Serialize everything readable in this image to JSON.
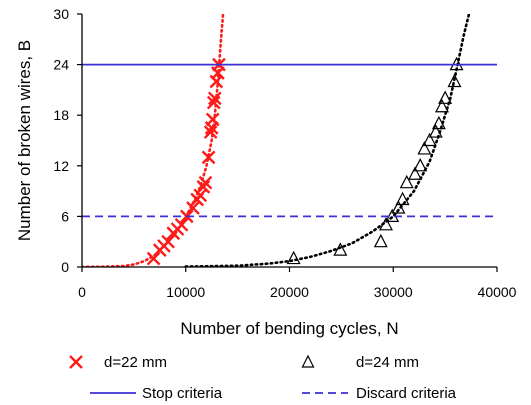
{
  "chart_data": {
    "type": "scatter",
    "title": "",
    "xlabel": "Number of bending cycles, N",
    "ylabel": "Number of broken wires, B",
    "xlim": [
      0,
      40000
    ],
    "ylim": [
      0,
      30
    ],
    "xticks": [
      0,
      10000,
      20000,
      30000,
      40000
    ],
    "xtick_labels": [
      "0",
      "10000",
      "20000",
      "30000",
      "40000"
    ],
    "yticks": [
      0,
      6,
      12,
      18,
      24,
      30
    ],
    "ytick_labels": [
      "0",
      "6",
      "12",
      "18",
      "24",
      "30"
    ],
    "grid": false,
    "legend_position": "bottom",
    "series": [
      {
        "name": "d=22 mm",
        "marker": "x",
        "color": "#ff1a1a",
        "points": [
          [
            6900,
            1
          ],
          [
            7500,
            2
          ],
          [
            7900,
            2.5
          ],
          [
            8300,
            3
          ],
          [
            8800,
            4
          ],
          [
            9200,
            4.5
          ],
          [
            9600,
            5
          ],
          [
            10100,
            6
          ],
          [
            10700,
            7
          ],
          [
            11100,
            8
          ],
          [
            11400,
            8.5
          ],
          [
            11700,
            9.5
          ],
          [
            11900,
            10
          ],
          [
            12200,
            13
          ],
          [
            12400,
            16
          ],
          [
            12500,
            16.5
          ],
          [
            12600,
            17.5
          ],
          [
            12700,
            19.5
          ],
          [
            12800,
            20
          ],
          [
            12950,
            22
          ],
          [
            13100,
            23
          ],
          [
            13200,
            24
          ]
        ]
      },
      {
        "name": "d=24 mm",
        "marker": "triangle",
        "color": "#000000",
        "points": [
          [
            20400,
            1
          ],
          [
            24900,
            2
          ],
          [
            28800,
            3
          ],
          [
            29300,
            5
          ],
          [
            29900,
            6
          ],
          [
            30500,
            7
          ],
          [
            30900,
            8
          ],
          [
            31300,
            10
          ],
          [
            32100,
            11
          ],
          [
            32600,
            12
          ],
          [
            33000,
            14
          ],
          [
            33500,
            15
          ],
          [
            34100,
            16
          ],
          [
            34400,
            17
          ],
          [
            34700,
            19
          ],
          [
            35000,
            20
          ],
          [
            35900,
            22
          ],
          [
            36100,
            24
          ]
        ]
      },
      {
        "name": "Stop criteria",
        "style": "solid-line",
        "color": "#3b2fd6",
        "y": 24
      },
      {
        "name": "Discard criteria",
        "style": "dashed-line",
        "color": "#3b2fd6",
        "y": 6
      }
    ],
    "trendlines": [
      {
        "series": "d=22 mm",
        "color": "#ff1a1a",
        "style": "dotted",
        "points": [
          [
            0,
            0.01
          ],
          [
            2000,
            0.03
          ],
          [
            4000,
            0.12
          ],
          [
            5000,
            0.3
          ],
          [
            6000,
            0.7
          ],
          [
            7000,
            1.4
          ],
          [
            8000,
            2.6
          ],
          [
            9000,
            4
          ],
          [
            10000,
            5.9
          ],
          [
            11000,
            8.3
          ],
          [
            11500,
            9.9
          ],
          [
            12000,
            12
          ],
          [
            12500,
            15
          ],
          [
            12800,
            18
          ],
          [
            13100,
            22
          ],
          [
            13400,
            27
          ],
          [
            13600,
            30
          ]
        ]
      },
      {
        "series": "d=24 mm",
        "color": "#000000",
        "style": "dotted",
        "points": [
          [
            10000,
            0.05
          ],
          [
            15000,
            0.15
          ],
          [
            18000,
            0.4
          ],
          [
            20000,
            0.7
          ],
          [
            22000,
            1.2
          ],
          [
            24000,
            1.9
          ],
          [
            26000,
            2.8
          ],
          [
            28000,
            4.2
          ],
          [
            30000,
            6
          ],
          [
            32000,
            9
          ],
          [
            33500,
            12.5
          ],
          [
            34500,
            16
          ],
          [
            35500,
            20
          ],
          [
            36200,
            24
          ],
          [
            36800,
            27.5
          ],
          [
            37300,
            30
          ]
        ]
      }
    ],
    "legend": [
      {
        "label": "d=22 mm",
        "symbol": "x",
        "color": "#ff1a1a"
      },
      {
        "label": "d=24 mm",
        "symbol": "triangle",
        "color": "#000000"
      },
      {
        "label": "Stop criteria",
        "symbol": "solid-line",
        "color": "#3b2fd6"
      },
      {
        "label": "Discard criteria",
        "symbol": "dashed-line",
        "color": "#3b2fd6"
      }
    ]
  }
}
